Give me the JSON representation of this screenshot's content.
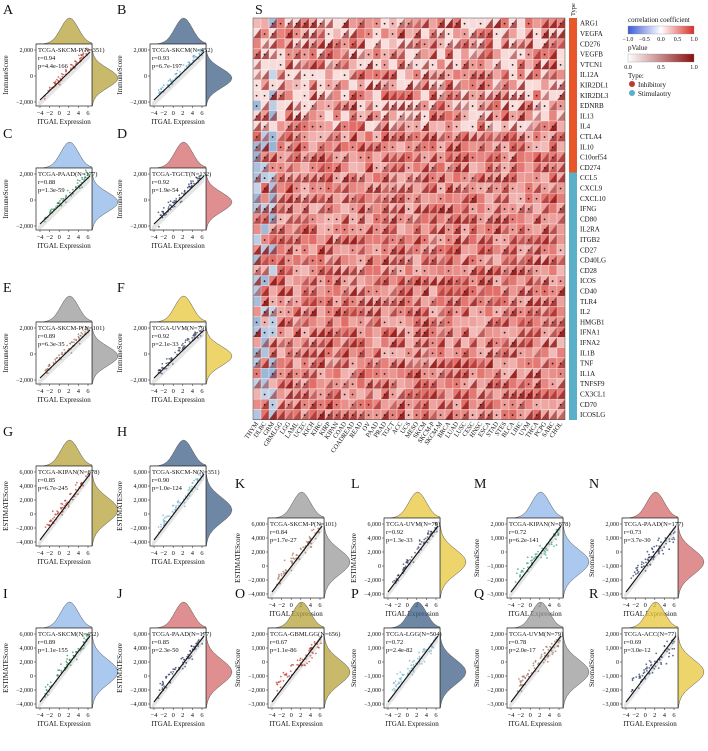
{
  "figure": {
    "panels": [
      {
        "letter": "A",
        "cohort": "TCGA-SKCM-P(N=351)",
        "r": "r=0.94",
        "p": "p=4.4e-166",
        "yaxis": "ImmuneScore",
        "xaxis": "ITGAL Expression",
        "yticks": [
          "2,000",
          "0",
          "−2,000"
        ],
        "xticks": [
          "−4",
          "−2",
          "0",
          "2",
          "4",
          "6"
        ],
        "color": "#c0392b",
        "dens": "#b5a23a"
      },
      {
        "letter": "B",
        "cohort": "TCGA-SKCM(N=452)",
        "r": "r=0.93",
        "p": "p=6.7e-197",
        "yaxis": "ImmuneScore",
        "xaxis": "ITGAL Expression",
        "yticks": [
          "2,000",
          "0",
          "−2,000"
        ],
        "xticks": [
          "−4",
          "−2",
          "0",
          "2",
          "4",
          "6"
        ],
        "color": "#5fa8c8",
        "dens": "#3e5f86"
      },
      {
        "letter": "C",
        "cohort": "TCGA-PAAD(N=177)",
        "r": "r=0.88",
        "p": "p=1.3e-59",
        "yaxis": "ImmuneScore",
        "xaxis": "ITGAL Expression",
        "yticks": [
          "2,000",
          "0",
          "−2,000"
        ],
        "xticks": [
          "−4",
          "−2",
          "0",
          "2",
          "4",
          "6"
        ],
        "color": "#2e8b57",
        "dens": "#8fb7e8"
      },
      {
        "letter": "D",
        "cohort": "TCGA-TGCT(N=132)",
        "r": "r=0.92",
        "p": "p=1.9e-54",
        "yaxis": "ImmuneScore",
        "xaxis": "ITGAL Expression",
        "yticks": [
          "2,000",
          "0",
          "−2,000"
        ],
        "xticks": [
          "−4",
          "−2",
          "0",
          "2",
          "4",
          "6"
        ],
        "color": "#1f2f5c",
        "dens": "#d46a6a"
      },
      {
        "letter": "E",
        "cohort": "TCGA-SKCM-P(N=101)",
        "r": "r=0.89",
        "p": "p=6.3e-35",
        "yaxis": "ImmuneScore",
        "xaxis": "ITGAL Expression",
        "yticks": [
          "2,000",
          "0",
          "−2,000"
        ],
        "xticks": [
          "−4",
          "−2",
          "0",
          "2",
          "4",
          "6"
        ],
        "color": "#a06a55",
        "dens": "#9a9a9a"
      },
      {
        "letter": "F",
        "cohort": "TCGA-UVM(N=79)",
        "r": "r=0.92",
        "p": "p=2.1e-33",
        "yaxis": "ImmuneScore",
        "xaxis": "ITGAL Expression",
        "yticks": [
          "2,000",
          "0",
          "−2,000"
        ],
        "xticks": [
          "−4",
          "−2",
          "0",
          "2",
          "4",
          "6"
        ],
        "color": "#333b5c",
        "dens": "#e8c73a"
      },
      {
        "letter": "G",
        "cohort": "TCGA-KIPAN(N=878)",
        "r": "r=0.85",
        "p": "p=6.7e-245",
        "yaxis": "ESTIMATEScore",
        "xaxis": "ITGAL Expression",
        "yticks": [
          "6,000",
          "4,000",
          "2,000",
          "0",
          "−2,000",
          "−4,000"
        ],
        "xticks": [
          "−4",
          "−2",
          "0",
          "2",
          "4",
          "6"
        ],
        "color": "#c0392b",
        "dens": "#b5a23a"
      },
      {
        "letter": "H",
        "cohort": "TCGA-SKCM-N(N=351)",
        "r": "r=0.90",
        "p": "p=1.0e-124",
        "yaxis": "ESTIMATEScore",
        "xaxis": "ITGAL Expression",
        "yticks": [
          "6,000",
          "4,000",
          "2,000",
          "0",
          "−2,000",
          "−4,000"
        ],
        "xticks": [
          "−4",
          "−2",
          "0",
          "2",
          "4",
          "6"
        ],
        "color": "#6fb3c9",
        "dens": "#3e5f86"
      },
      {
        "letter": "I",
        "cohort": "TCGA-SKCM(N=452)",
        "r": "r=0.89",
        "p": "p=1.1e-155",
        "yaxis": "ESTIMATEScore",
        "xaxis": "ITGAL Expression",
        "yticks": [
          "6,000",
          "4,000",
          "2,000",
          "0",
          "−2,000",
          "−4,000"
        ],
        "xticks": [
          "−4",
          "−2",
          "0",
          "2",
          "4",
          "6"
        ],
        "color": "#2e8b57",
        "dens": "#8fb7e8"
      },
      {
        "letter": "J",
        "cohort": "TCGA-PAAD(N=177)",
        "r": "r=0.85",
        "p": "p=2.3e-50",
        "yaxis": "ESTIMATEScore",
        "xaxis": "ITGAL Expression",
        "yticks": [
          "6,000",
          "4,000",
          "2,000",
          "0",
          "−2,000",
          "−4,000"
        ],
        "xticks": [
          "−4",
          "−2",
          "0",
          "2",
          "4",
          "6"
        ],
        "color": "#1f2f5c",
        "dens": "#d46a6a"
      },
      {
        "letter": "K",
        "cohort": "TCGA-SKCM-P(N=101)",
        "r": "r=0.84",
        "p": "p=1.7e-27",
        "yaxis": "ESTIMATEScore",
        "xaxis": "ITGAL Expression",
        "yticks": [
          "6,000",
          "4,000",
          "2,000",
          "0",
          "−2,000",
          "−4,000"
        ],
        "xticks": [
          "−4",
          "−2",
          "0",
          "2",
          "4",
          "6"
        ],
        "color": "#a06a55",
        "dens": "#9a9a9a"
      },
      {
        "letter": "L",
        "cohort": "TCGA-UVM(N=79)",
        "r": "r=0.92",
        "p": "p=1.3e-33",
        "yaxis": "ESTIMATEScore",
        "xaxis": "ITGAL Expression",
        "yticks": [
          "6,000",
          "4,000",
          "2,000",
          "0",
          "−2,000",
          "−4,000"
        ],
        "xticks": [
          "−4",
          "−2",
          "0",
          "2",
          "4",
          "6"
        ],
        "color": "#333b5c",
        "dens": "#e8c73a"
      },
      {
        "letter": "M",
        "cohort": "TCGA-KIPAN(N=878)",
        "r": "r=0.72",
        "p": "p=6.2e-141",
        "yaxis": "StromalScore",
        "xaxis": "ITGAL Expression",
        "yticks": [
          "2,000",
          "1,000",
          "0",
          "−1,000",
          "−2,000",
          "−3,000"
        ],
        "xticks": [
          "−4",
          "−2",
          "0",
          "2",
          "4",
          "6"
        ],
        "color": "#2e9e6e",
        "dens": "#8fb7e8"
      },
      {
        "letter": "N",
        "cohort": "TCGA-PAAD(N=177)",
        "r": "r=0.73",
        "p": "p=3.7e-30",
        "yaxis": "StromalScore",
        "xaxis": "ITGAL Expression",
        "yticks": [
          "2,000",
          "1,000",
          "0",
          "−1,000",
          "−2,000",
          "−3,000"
        ],
        "xticks": [
          "−4",
          "−2",
          "0",
          "2",
          "4",
          "6"
        ],
        "color": "#1f2f5c",
        "dens": "#d46a6a"
      },
      {
        "letter": "O",
        "cohort": "TCGA-GBMLGG(N=656)",
        "r": "r=0.67",
        "p": "p=1.1e-86",
        "yaxis": "StromalScore",
        "xaxis": "ITGAL Expression",
        "yticks": [
          "2,000",
          "1,000",
          "0",
          "−1,000",
          "−2,000",
          "−3,000"
        ],
        "xticks": [
          "−4",
          "−2",
          "0",
          "2",
          "4",
          "6"
        ],
        "color": "#c0392b",
        "dens": "#b5a23a"
      },
      {
        "letter": "P",
        "cohort": "TCGA-LGG(N=504)",
        "r": "r=0.72",
        "p": "p=2.4e-82",
        "yaxis": "StromalScore",
        "xaxis": "ITGAL Expression",
        "yticks": [
          "2,000",
          "1,000",
          "0",
          "−1,000",
          "−2,000",
          "−3,000"
        ],
        "xticks": [
          "−4",
          "−2",
          "0",
          "2",
          "4",
          "6"
        ],
        "color": "#6fb3c9",
        "dens": "#3e5f86"
      },
      {
        "letter": "Q",
        "cohort": "TCGA-UVM(N=79)",
        "r": "r=0.78",
        "p": "p=2.0e-17",
        "yaxis": "StromalScore",
        "xaxis": "ITGAL Expression",
        "yticks": [
          "2,000",
          "1,000",
          "0",
          "−1,000",
          "−2,000",
          "−3,000"
        ],
        "xticks": [
          "−4",
          "−2",
          "0",
          "2",
          "4",
          "6"
        ],
        "color": "#a06a55",
        "dens": "#9a9a9a"
      },
      {
        "letter": "R",
        "cohort": "TCGA-ACC(N=77)",
        "r": "r=0.69",
        "p": "p=3.0e-12",
        "yaxis": "StromalScore",
        "xaxis": "ITGAL Expression",
        "yticks": [
          "2,000",
          "1,000",
          "0",
          "−1,000",
          "−2,000",
          "−3,000"
        ],
        "xticks": [
          "−4",
          "−2",
          "0",
          "2",
          "4",
          "6"
        ],
        "color": "#1f2f5c",
        "dens": "#e8c73a"
      }
    ],
    "heatmap": {
      "letter": "S",
      "type_header": "Type",
      "genes": [
        "ARG1",
        "VEGFA",
        "CD276",
        "VEGFB",
        "VTCN1",
        "IL12A",
        "KIR2DL1",
        "KIR2DL3",
        "EDNRB",
        "IL13",
        "IL4",
        "CTLA4",
        "IL10",
        "C10orf54",
        "CD274",
        "CCL5",
        "CXCL9",
        "CXCL10",
        "IFNG",
        "CD80",
        "IL2RA",
        "ITGB2",
        "CD27",
        "CD40LG",
        "CD28",
        "ICOS",
        "CD40",
        "TLR4",
        "IL2",
        "HMGB1",
        "IFNA1",
        "IFNA2",
        "IL1B",
        "TNF",
        "IL1A",
        "TNFSF9",
        "CX3CL1",
        "CD70",
        "ICOSLG"
      ],
      "gene_types": [
        "Inhibitory",
        "Inhibitory",
        "Inhibitory",
        "Inhibitory",
        "Inhibitory",
        "Inhibitory",
        "Inhibitory",
        "Inhibitory",
        "Inhibitory",
        "Inhibitory",
        "Inhibitory",
        "Inhibitory",
        "Inhibitory",
        "Inhibitory",
        "Inhibitory",
        "Stimulaotry",
        "Stimulaotry",
        "Stimulaotry",
        "Stimulaotry",
        "Stimulaotry",
        "Stimulaotry",
        "Stimulaotry",
        "Stimulaotry",
        "Stimulaotry",
        "Stimulaotry",
        "Stimulaotry",
        "Stimulaotry",
        "Stimulaotry",
        "Stimulaotry",
        "Stimulaotry",
        "Stimulaotry",
        "Stimulaotry",
        "Stimulaotry",
        "Stimulaotry",
        "Stimulaotry",
        "Stimulaotry",
        "Stimulaotry",
        "Stimulaotry",
        "Stimulaotry"
      ],
      "cancers": [
        "THYM",
        "DLBC",
        "GBM",
        "GBMLGG",
        "LGG",
        "LAML",
        "UCEC",
        "KICH",
        "KIRC",
        "KIRP",
        "KIPAN",
        "COAD",
        "COADREAD",
        "READ",
        "OV",
        "PAAD",
        "PRAD",
        "TGCT",
        "ACC",
        "UCS",
        "MESO",
        "SKCM",
        "SKCM-P",
        "SKCM-M",
        "BRCA",
        "LUAD",
        "LUSC",
        "CESC",
        "HNSC",
        "ESCA",
        "STAD",
        "STES",
        "BLCA",
        "LIHC",
        "UVM",
        "THCA",
        "PCPG",
        "SARC",
        "CHOL"
      ],
      "legend": {
        "corr_title": "correlation coefficient",
        "corr_ticks": [
          "−1.0",
          "−0.5",
          "0.0",
          "0.5",
          "1.0"
        ],
        "p_title": "pValue",
        "p_ticks": [
          "0.0",
          "0.5",
          "1.0"
        ],
        "type_title": "Type:",
        "type_items": [
          {
            "label": "Inhibitory",
            "color": "#c0392b"
          },
          {
            "label": "Stimulaotry",
            "color": "#5ab0c9"
          }
        ]
      },
      "colors": {
        "inhibitory": "#e8562a",
        "stimulatory": "#5ab0c9",
        "pos": "#d73027",
        "neg": "#4575b4"
      }
    }
  },
  "chart_data": {
    "type": "heatmap",
    "title": "",
    "rows": [
      "ARG1",
      "VEGFA",
      "CD276",
      "VEGFB",
      "VTCN1",
      "IL12A",
      "KIR2DL1",
      "KIR2DL3",
      "EDNRB",
      "IL13",
      "IL4",
      "CTLA4",
      "IL10",
      "C10orf54",
      "CD274",
      "CCL5",
      "CXCL9",
      "CXCL10",
      "IFNG",
      "CD80",
      "IL2RA",
      "ITGB2",
      "CD27",
      "CD40LG",
      "CD28",
      "ICOS",
      "CD40",
      "TLR4",
      "IL2",
      "HMGB1",
      "IFNA1",
      "IFNA2",
      "IL1B",
      "TNF",
      "IL1A",
      "TNFSF9",
      "CX3CL1",
      "CD70",
      "ICOSLG"
    ],
    "value_range": [
      -1.0,
      1.0
    ],
    "note_values": "correlation coefficients between ITGAL expression and immune checkpoint genes across cancers; most cells positive (0.3-0.8)",
    "scatter_panels": [
      {
        "panel": "A",
        "r": 0.94
      },
      {
        "panel": "B",
        "r": 0.93
      },
      {
        "panel": "C",
        "r": 0.88
      },
      {
        "panel": "D",
        "r": 0.92
      },
      {
        "panel": "E",
        "r": 0.89
      },
      {
        "panel": "F",
        "r": 0.92
      },
      {
        "panel": "G",
        "r": 0.85
      },
      {
        "panel": "H",
        "r": 0.9
      },
      {
        "panel": "I",
        "r": 0.89
      },
      {
        "panel": "J",
        "r": 0.85
      },
      {
        "panel": "K",
        "r": 0.84
      },
      {
        "panel": "L",
        "r": 0.92
      },
      {
        "panel": "M",
        "r": 0.72
      },
      {
        "panel": "N",
        "r": 0.73
      },
      {
        "panel": "O",
        "r": 0.67
      },
      {
        "panel": "P",
        "r": 0.72
      },
      {
        "panel": "Q",
        "r": 0.78
      },
      {
        "panel": "R",
        "r": 0.69
      }
    ]
  }
}
